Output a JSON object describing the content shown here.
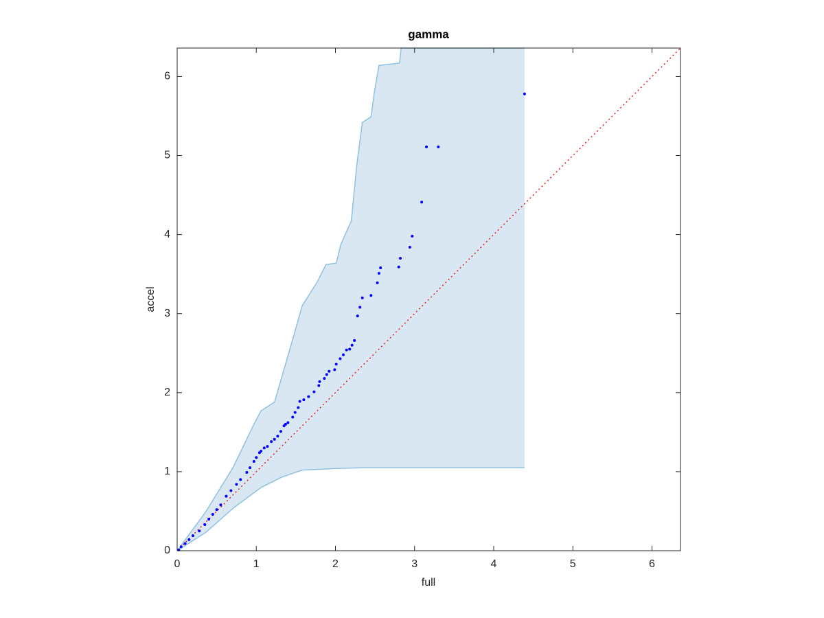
{
  "chart_data": {
    "type": "scatter",
    "title": "gamma",
    "x_label": "full",
    "y_label": "accel",
    "xlim": [
      0,
      6.36
    ],
    "ylim": [
      0,
      6.36
    ],
    "xticks": [
      0,
      1,
      2,
      3,
      4,
      5,
      6
    ],
    "yticks": [
      0,
      1,
      2,
      3,
      4,
      5,
      6
    ],
    "grid": false,
    "color": "#0000ff",
    "x": [
      0.02,
      0.05,
      0.1,
      0.15,
      0.2,
      0.28,
      0.35,
      0.4,
      0.45,
      0.5,
      0.55,
      0.62,
      0.68,
      0.75,
      0.8,
      0.88,
      0.92,
      0.97,
      1.0,
      1.04,
      1.06,
      1.1,
      1.14,
      1.19,
      1.23,
      1.27,
      1.31,
      1.35,
      1.37,
      1.4,
      1.46,
      1.49,
      1.53,
      1.55,
      1.6,
      1.66,
      1.73,
      1.79,
      1.8,
      1.86,
      1.89,
      1.92,
      1.99,
      2.01,
      2.06,
      2.1,
      2.14,
      2.18,
      2.21,
      2.24,
      2.28,
      2.31,
      2.34,
      2.45,
      2.53,
      2.55,
      2.57,
      2.8,
      2.82,
      2.94,
      2.97,
      3.09,
      3.15,
      3.3,
      4.39
    ],
    "values": [
      0.01,
      0.05,
      0.09,
      0.14,
      0.19,
      0.25,
      0.33,
      0.4,
      0.46,
      0.52,
      0.58,
      0.69,
      0.76,
      0.84,
      0.9,
      0.99,
      1.05,
      1.13,
      1.18,
      1.24,
      1.26,
      1.3,
      1.32,
      1.38,
      1.41,
      1.45,
      1.51,
      1.58,
      1.6,
      1.62,
      1.69,
      1.75,
      1.81,
      1.89,
      1.91,
      1.95,
      2.01,
      2.09,
      2.14,
      2.18,
      2.23,
      2.27,
      2.29,
      2.36,
      2.43,
      2.48,
      2.54,
      2.55,
      2.6,
      2.66,
      2.97,
      3.08,
      3.2,
      3.23,
      3.39,
      3.51,
      3.58,
      3.59,
      3.7,
      3.84,
      3.98,
      4.41,
      5.11,
      5.11,
      5.78
    ],
    "band": {
      "fill": "#d9e7f3",
      "stroke": "#8fc1e0",
      "upper": {
        "x": [
          0,
          0.36,
          0.71,
          0.97,
          1.06,
          1.23,
          1.32,
          1.47,
          1.58,
          1.77,
          1.88,
          2.01,
          2.07,
          2.2,
          2.27,
          2.34,
          2.45,
          2.49,
          2.55,
          2.81,
          2.83,
          4.39
        ],
        "y": [
          0,
          0.49,
          1.06,
          1.6,
          1.77,
          1.88,
          2.19,
          2.71,
          3.1,
          3.4,
          3.62,
          3.64,
          3.88,
          4.17,
          4.88,
          5.42,
          5.49,
          5.79,
          6.14,
          6.17,
          6.36,
          6.36
        ]
      },
      "lower": {
        "x": [
          0,
          0.36,
          0.71,
          1.06,
          1.32,
          1.58,
          2.01,
          2.36,
          4.39
        ],
        "y": [
          0,
          0.23,
          0.54,
          0.8,
          0.93,
          1.02,
          1.04,
          1.05,
          1.05
        ]
      }
    },
    "reference_line": {
      "x": [
        0,
        6.36
      ],
      "y": [
        0,
        6.36
      ],
      "color": "#e41a1c"
    }
  }
}
